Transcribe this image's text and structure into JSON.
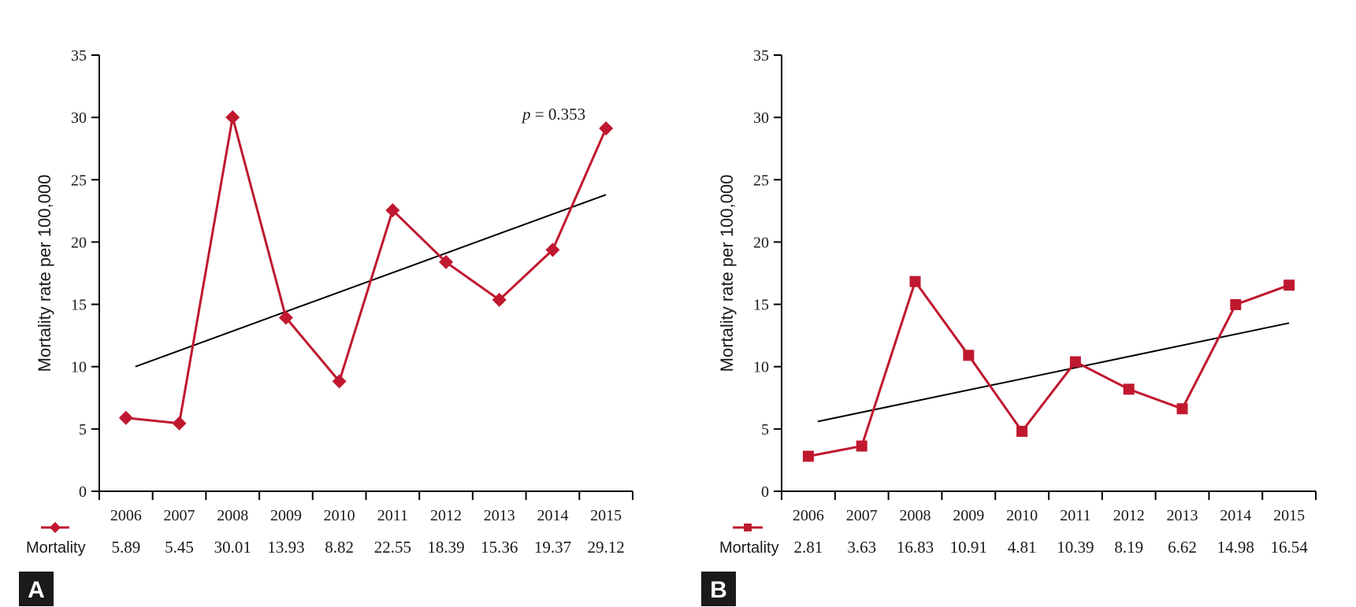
{
  "figure": {
    "panels": [
      {
        "letter": "A",
        "marker": "diamond",
        "y_axis_label": "Mortality rate per 100,000",
        "row_label": "Mortality",
        "annotation_p": "p",
        "annotation_value": " = 0.353"
      },
      {
        "letter": "B",
        "marker": "square",
        "y_axis_label": "Mortality rate per 100,000",
        "row_label": "Mortality",
        "annotation_p": "",
        "annotation_value": ""
      }
    ]
  },
  "chart_data": [
    {
      "type": "line",
      "categories": [
        "2006",
        "2007",
        "2008",
        "2009",
        "2010",
        "2011",
        "2012",
        "2013",
        "2014",
        "2015"
      ],
      "series": [
        {
          "name": "Mortality",
          "values": [
            5.89,
            5.45,
            30.01,
            13.93,
            8.82,
            22.55,
            18.39,
            15.36,
            19.37,
            29.12
          ],
          "color": "#c0182f"
        }
      ],
      "value_labels": [
        "5.89",
        "5.45",
        "30.01",
        "13.93",
        "8.82",
        "22.55",
        "18.39",
        "15.36",
        "19.37",
        "29.12"
      ],
      "trendline": {
        "start": 10.0,
        "end": 23.8,
        "color": "#000000"
      },
      "ylabel": "Mortality rate per 100,000",
      "xlabel": "",
      "ylim": [
        0,
        35
      ],
      "yticks": [
        0,
        5,
        10,
        15,
        20,
        25,
        30,
        35
      ],
      "grid": false,
      "legend": "below-left"
    },
    {
      "type": "line",
      "categories": [
        "2006",
        "2007",
        "2008",
        "2009",
        "2010",
        "2011",
        "2012",
        "2013",
        "2014",
        "2015"
      ],
      "series": [
        {
          "name": "Mortality",
          "values": [
            2.81,
            3.63,
            16.83,
            10.91,
            4.81,
            10.39,
            8.19,
            6.62,
            14.98,
            16.54
          ],
          "color": "#c0182f"
        }
      ],
      "value_labels": [
        "2.81",
        "3.63",
        "16.83",
        "10.91",
        "4.81",
        "10.39",
        "8.19",
        "6.62",
        "14.98",
        "16.54"
      ],
      "trendline": {
        "start": 5.6,
        "end": 13.5,
        "color": "#000000"
      },
      "ylabel": "Mortality rate per 100,000",
      "xlabel": "",
      "ylim": [
        0,
        35
      ],
      "yticks": [
        0,
        5,
        10,
        15,
        20,
        25,
        30,
        35
      ],
      "grid": false,
      "legend": "below-left"
    }
  ]
}
